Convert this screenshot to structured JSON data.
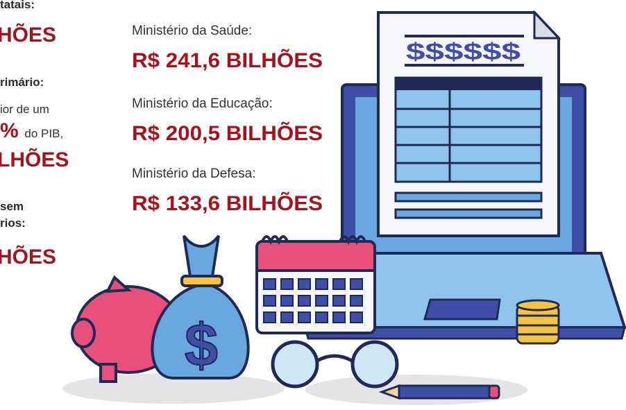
{
  "left_column": {
    "lines": [
      {
        "text": "tatais:"
      },
      {
        "text": "HÕES"
      },
      {
        "text": "rimário:"
      },
      {
        "text": "ior de um"
      },
      {
        "highlight": "%",
        "text": "do PIB,"
      },
      {
        "text": "LHÕES"
      },
      {
        "text": "sem"
      },
      {
        "text": "rios:"
      },
      {
        "text": "HÕES"
      }
    ]
  },
  "center_column": {
    "items": [
      {
        "label": "Ministério da Saúde:",
        "value": "R$ 241,6 BILHÕES"
      },
      {
        "label": "Ministério da Educação:",
        "value": "R$ 200,5 BILHÕES"
      },
      {
        "label": "Ministério da Defesa:",
        "value": "R$ 133,6 BILHÕES"
      }
    ]
  },
  "document": {
    "symbol": "$$$$$$"
  },
  "money_bag": {
    "symbol": "$"
  }
}
